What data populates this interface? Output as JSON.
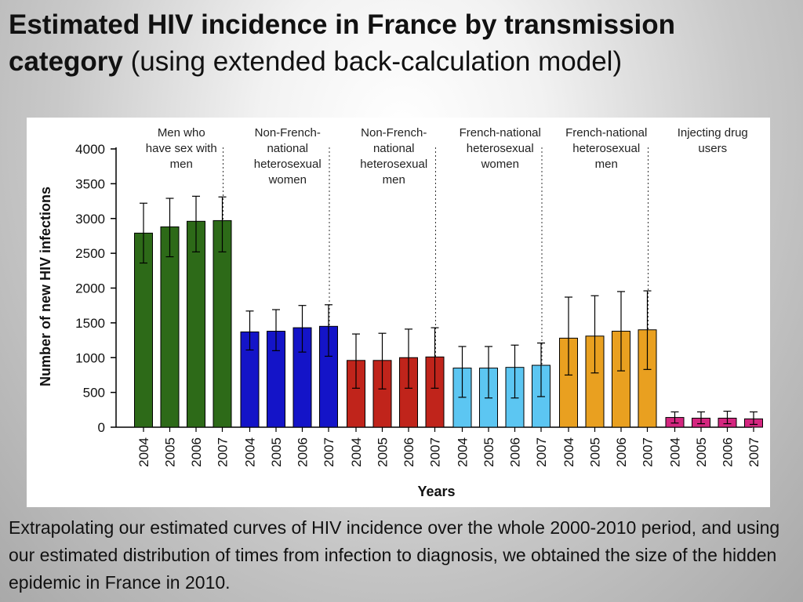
{
  "slide": {
    "title_bold": "Estimated HIV incidence in France by transmission category",
    "title_rest": "(using extended back-calculation model)",
    "caption": "Extrapolating our estimated curves of HIV incidence over the whole 2000-2010 period, and using our estimated distribution of times from infection to diagnosis, we obtained the size of the hidden epidemic in France in 2010."
  },
  "chart_data": {
    "type": "bar",
    "xlabel": "Years",
    "ylabel": "Number of new HIV infections",
    "ylim": [
      0,
      4000
    ],
    "yticks": [
      0,
      500,
      1000,
      1500,
      2000,
      2500,
      3000,
      3500,
      4000
    ],
    "years": [
      "2004",
      "2005",
      "2006",
      "2007"
    ],
    "error_bars": true,
    "groups": [
      {
        "name": "Men who have sex with men",
        "name_lines": [
          "Men who",
          "have sex with",
          "men"
        ],
        "color": "#2d6a18",
        "values": [
          2790,
          2880,
          2960,
          2970
        ],
        "err_low": [
          2360,
          2450,
          2520,
          2520
        ],
        "err_high": [
          3220,
          3290,
          3320,
          3310
        ]
      },
      {
        "name": "Non-French-national heterosexual women",
        "name_lines": [
          "Non-French-",
          "national",
          "heterosexual",
          "women"
        ],
        "color": "#1414c8",
        "values": [
          1370,
          1380,
          1430,
          1450
        ],
        "err_low": [
          1110,
          1100,
          1080,
          1020
        ],
        "err_high": [
          1670,
          1690,
          1750,
          1760
        ]
      },
      {
        "name": "Non-French-national heterosexual men",
        "name_lines": [
          "Non-French-",
          "national",
          "heterosexual",
          "men"
        ],
        "color": "#c0241b",
        "values": [
          960,
          960,
          1000,
          1010
        ],
        "err_low": [
          560,
          550,
          560,
          560
        ],
        "err_high": [
          1340,
          1350,
          1410,
          1430
        ]
      },
      {
        "name": "French-national heterosexual women",
        "name_lines": [
          "French-national",
          "heterosexual",
          "women"
        ],
        "color": "#5cc6f2",
        "values": [
          850,
          850,
          860,
          890
        ],
        "err_low": [
          430,
          420,
          420,
          440
        ],
        "err_high": [
          1160,
          1160,
          1180,
          1210
        ]
      },
      {
        "name": "French-national heterosexual men",
        "name_lines": [
          "French-national",
          "heterosexual",
          "men"
        ],
        "color": "#e9a020",
        "values": [
          1280,
          1310,
          1380,
          1400
        ],
        "err_low": [
          750,
          780,
          810,
          830
        ],
        "err_high": [
          1870,
          1890,
          1950,
          1960
        ]
      },
      {
        "name": "Injecting drug users",
        "name_lines": [
          "Injecting drug",
          "users"
        ],
        "color": "#d4267f",
        "values": [
          140,
          130,
          130,
          120
        ],
        "err_low": [
          60,
          50,
          50,
          40
        ],
        "err_high": [
          220,
          220,
          230,
          220
        ]
      }
    ]
  }
}
